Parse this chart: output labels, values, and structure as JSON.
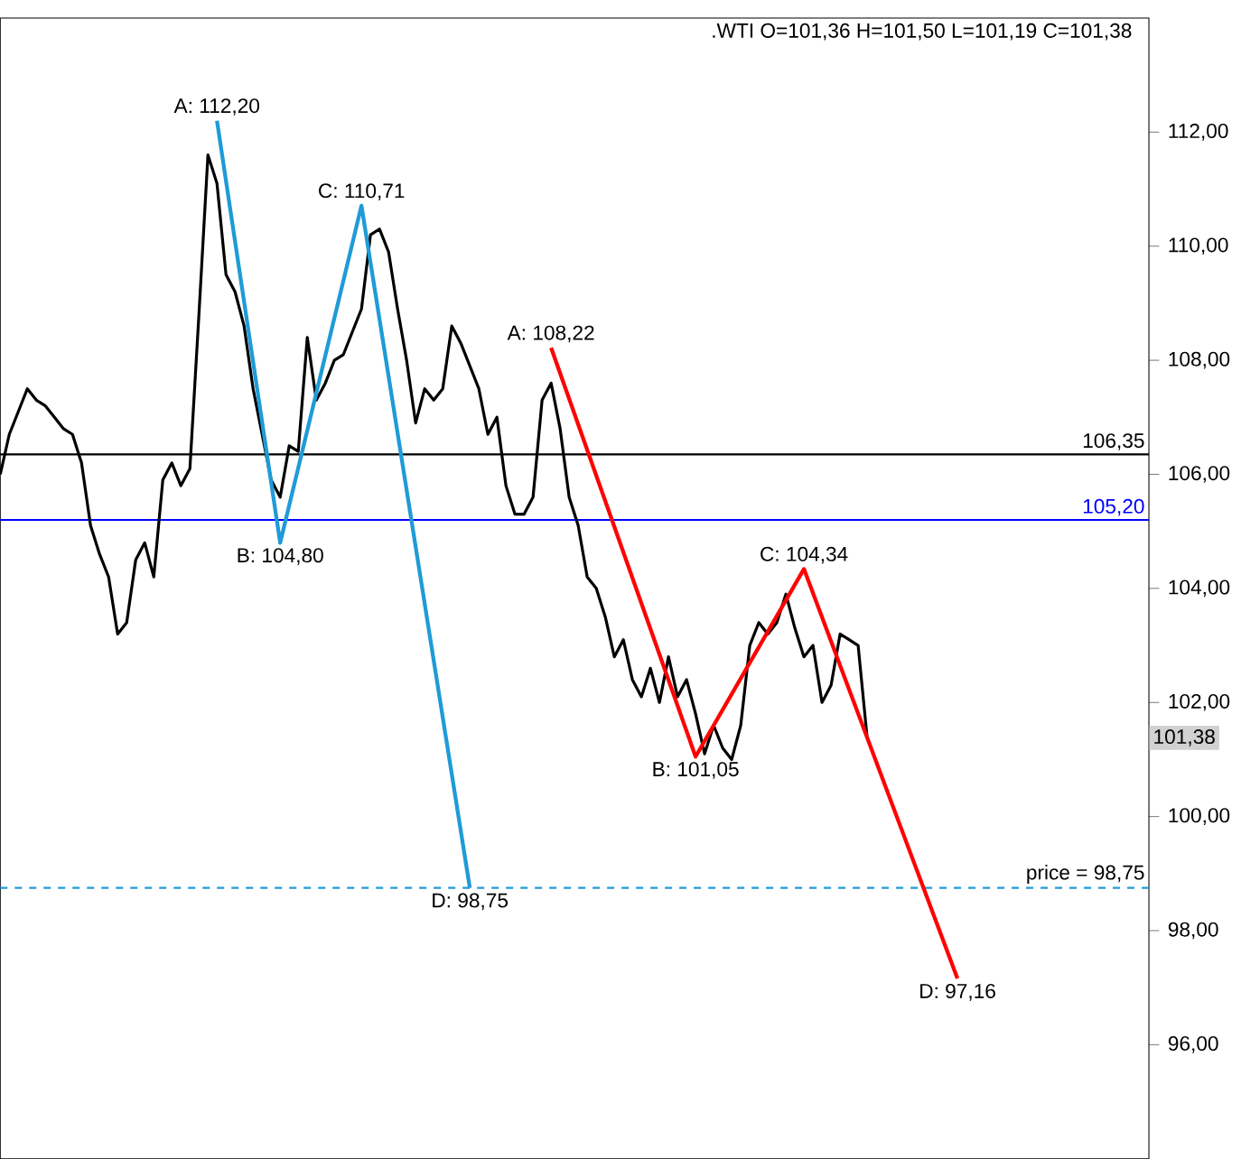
{
  "chart_data": {
    "type": "line",
    "categories": [
      null,
      null,
      null,
      null,
      null,
      null,
      null,
      null,
      null,
      null,
      null,
      null,
      null,
      null,
      null,
      null,
      null,
      null,
      null,
      null,
      null,
      null,
      null,
      null,
      null,
      null,
      null,
      null,
      null,
      null,
      null,
      null,
      null,
      null,
      null,
      null,
      null,
      null,
      null,
      null,
      null,
      null,
      null,
      null,
      null,
      null,
      null,
      null,
      null,
      null,
      null,
      null,
      null,
      null,
      null,
      null,
      null,
      null,
      null,
      null,
      null,
      null,
      null,
      null,
      null,
      null,
      null,
      null,
      null,
      null,
      null,
      null,
      null,
      null,
      null,
      null,
      null,
      null,
      null,
      null,
      null,
      null,
      null,
      null,
      null,
      null,
      null,
      null,
      null,
      null,
      null,
      null,
      null,
      null,
      null,
      null,
      null,
      null,
      null,
      null,
      null,
      null,
      null,
      null,
      null,
      null,
      null
    ],
    "ylim": [
      94,
      114
    ],
    "tick_labels": "y",
    "grid": false,
    "marker": "none",
    "line_style": "solid",
    "yticks": [
      {
        "value": 96,
        "label": "96,00"
      },
      {
        "value": 98,
        "label": "98,00"
      },
      {
        "value": 100,
        "label": "100,00"
      },
      {
        "value": 102,
        "label": "102,00"
      },
      {
        "value": 104,
        "label": "104,00"
      },
      {
        "value": 106,
        "label": "106,00"
      },
      {
        "value": 108,
        "label": "108,00"
      },
      {
        "value": 110,
        "label": "110,00"
      },
      {
        "value": 112,
        "label": "112,00"
      }
    ],
    "series": [
      {
        "color": "#000000",
        "values": [
          106.0,
          106.7,
          107.1,
          107.5,
          107.3,
          107.2,
          107.0,
          106.8,
          106.7,
          106.2,
          105.1,
          104.6,
          104.2,
          103.2,
          103.4,
          104.5,
          104.8,
          104.2,
          105.9,
          106.2,
          105.8,
          106.1,
          108.8,
          111.6,
          111.1,
          109.5,
          109.2,
          108.6,
          107.5,
          106.7,
          105.9,
          105.6,
          106.5,
          106.4,
          108.4,
          107.3,
          107.6,
          108.0,
          108.1,
          108.5,
          108.9,
          110.2,
          110.3,
          109.9,
          108.9,
          108.0,
          106.9,
          107.5,
          107.3,
          107.5,
          108.6,
          108.3,
          107.9,
          107.5,
          106.7,
          107.0,
          105.8,
          105.3,
          105.3,
          105.6,
          107.3,
          107.6,
          106.8,
          105.6,
          105.1,
          104.2,
          104.0,
          103.5,
          102.8,
          103.1,
          102.4,
          102.1,
          102.6,
          102.0,
          102.8,
          102.1,
          102.4,
          101.8,
          101.1,
          101.6,
          101.2,
          101.0,
          101.6,
          103.0,
          103.4,
          103.2,
          103.4,
          103.9,
          103.3,
          102.8,
          103.0,
          102.0,
          102.3,
          103.2,
          103.1,
          103.0,
          101.38,
          null,
          null,
          null,
          null,
          null,
          null,
          null,
          null,
          null,
          null
        ]
      },
      {
        "color": "#1f9bd7",
        "values": [
          null,
          null,
          null,
          null,
          null,
          null,
          null,
          null,
          null,
          null,
          null,
          null,
          null,
          null,
          null,
          null,
          null,
          null,
          null,
          null,
          null,
          null,
          null,
          null,
          112.2,
          null,
          null,
          null,
          null,
          null,
          null,
          104.8,
          null,
          null,
          null,
          null,
          null,
          null,
          null,
          null,
          110.71,
          null,
          null,
          null,
          null,
          null,
          null,
          null,
          null,
          null,
          null,
          null,
          98.75,
          null,
          null,
          null,
          null,
          null,
          null,
          null,
          null,
          null,
          null,
          null,
          null,
          null,
          null,
          null,
          null,
          null,
          null,
          null,
          null,
          null,
          null,
          null,
          null,
          null,
          null,
          null,
          null,
          null,
          null,
          null,
          null,
          null,
          null,
          null,
          null,
          null,
          null,
          null,
          null,
          null,
          null,
          null,
          null,
          null,
          null,
          null,
          null,
          null,
          null,
          null,
          null,
          null,
          null
        ]
      },
      {
        "color": "#ff0000",
        "values": [
          null,
          null,
          null,
          null,
          null,
          null,
          null,
          null,
          null,
          null,
          null,
          null,
          null,
          null,
          null,
          null,
          null,
          null,
          null,
          null,
          null,
          null,
          null,
          null,
          null,
          null,
          null,
          null,
          null,
          null,
          null,
          null,
          null,
          null,
          null,
          null,
          null,
          null,
          null,
          null,
          null,
          null,
          null,
          null,
          null,
          null,
          null,
          null,
          null,
          null,
          null,
          null,
          null,
          null,
          null,
          null,
          null,
          null,
          null,
          null,
          null,
          108.22,
          null,
          null,
          null,
          null,
          null,
          null,
          null,
          null,
          null,
          null,
          null,
          null,
          null,
          null,
          null,
          101.05,
          null,
          null,
          null,
          null,
          null,
          null,
          null,
          null,
          null,
          null,
          null,
          104.34,
          null,
          null,
          null,
          null,
          null,
          null,
          null,
          null,
          null,
          null,
          null,
          null,
          null,
          null,
          null,
          null,
          97.16
        ]
      }
    ],
    "ref_lines": [
      {
        "axis": "y",
        "value": 106.35,
        "label": "106,35",
        "color": "#000000",
        "line_style": "solid"
      },
      {
        "axis": "y",
        "value": 105.2,
        "label": "105,20",
        "color": "#0000ff",
        "line_style": "solid"
      },
      {
        "axis": "y",
        "value": 98.75,
        "label": "price = 98,75",
        "color": "#1f9bd7",
        "line_style": "dashed"
      }
    ],
    "annotations": [
      ".WTI O=101,36 H=101,50 L=101,19 C=101,38",
      "101,38",
      {
        "text": "A: 112,20",
        "y": 112.2
      },
      {
        "text": "B: 104,80",
        "y": 104.8
      },
      {
        "text": "C: 110,71",
        "y": 110.71
      },
      {
        "text": "D: 98,75",
        "y": 98.75
      },
      {
        "text": "A: 108,22",
        "y": 108.22
      },
      {
        "text": "B: 101,05",
        "y": 101.05
      },
      {
        "text": "C: 104,34",
        "y": 104.34
      },
      {
        "text": "D: 97,16",
        "y": 97.16
      }
    ]
  }
}
